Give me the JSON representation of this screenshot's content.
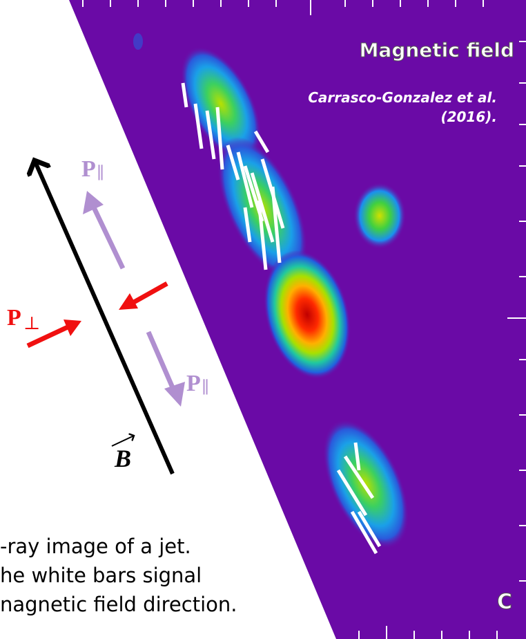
{
  "panel": {
    "title": "Magnetic field",
    "citation": [
      "Carrasco-Gonzalez et al.",
      "(2016)."
    ],
    "corner_label": "C"
  },
  "diagram": {
    "field_label": "B",
    "parallel_label": "P",
    "parallel_sub": "∥",
    "perpendicular_label": "P",
    "perpendicular_sub": "⊥"
  },
  "caption": [
    "-ray image of a jet.",
    "he white bars signal",
    "nagnetic field direction."
  ]
}
